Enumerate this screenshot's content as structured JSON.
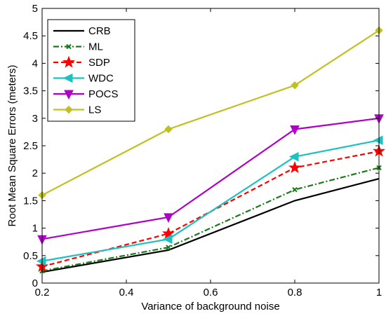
{
  "chart_data": {
    "type": "line",
    "title": "",
    "xlabel": "Variance of background noise",
    "ylabel": "Root Mean Square Errors (meters)",
    "xlim": [
      0.2,
      1
    ],
    "ylim": [
      0,
      5
    ],
    "xticks": [
      0.2,
      0.4,
      0.6,
      0.8,
      1
    ],
    "xtick_labels": [
      "0.2",
      "0.4",
      "0.6",
      "0.8",
      "1"
    ],
    "yticks": [
      0,
      0.5,
      1,
      1.5,
      2,
      2.5,
      3,
      3.5,
      4,
      4.5,
      5
    ],
    "ytick_labels": [
      "0",
      "0.5",
      "1",
      "1.5",
      "2",
      "2.5",
      "3",
      "3.5",
      "4",
      "4.5",
      "5"
    ],
    "grid": false,
    "legend_position": "top-left",
    "x": [
      0.2,
      0.5,
      0.8,
      1
    ],
    "series": [
      {
        "name": "CRB",
        "values": [
          0.2,
          0.6,
          1.5,
          1.9
        ],
        "color": "#000000",
        "dash": "solid",
        "marker": "none"
      },
      {
        "name": "ML",
        "values": [
          0.22,
          0.65,
          1.7,
          2.1
        ],
        "color": "#1a7a1a",
        "dash": "dashdot",
        "marker": "x"
      },
      {
        "name": "SDP",
        "values": [
          0.3,
          0.9,
          2.1,
          2.4
        ],
        "color": "#ff0000",
        "dash": "dashed",
        "marker": "star"
      },
      {
        "name": "WDC",
        "values": [
          0.4,
          0.8,
          2.3,
          2.6
        ],
        "color": "#1ec0c0",
        "dash": "solid",
        "marker": "triangle-left"
      },
      {
        "name": "POCS",
        "values": [
          0.8,
          1.2,
          2.8,
          3.0
        ],
        "color": "#b000c8",
        "dash": "solid",
        "marker": "triangle-down"
      },
      {
        "name": "LS",
        "values": [
          1.6,
          2.8,
          3.6,
          4.6
        ],
        "color": "#c0c020",
        "dash": "solid",
        "marker": "diamond"
      }
    ]
  }
}
